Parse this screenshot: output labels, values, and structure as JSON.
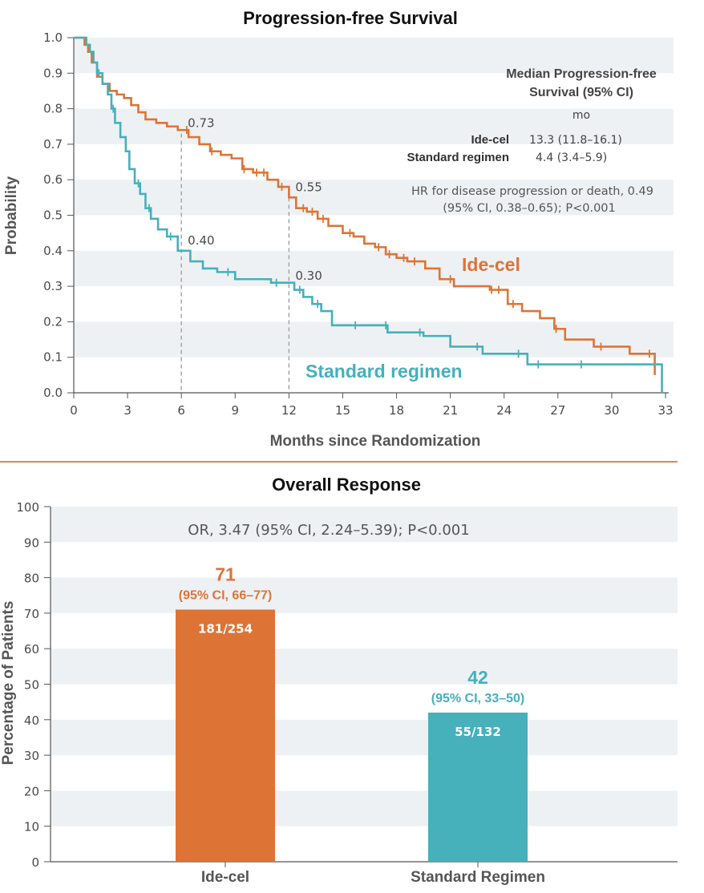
{
  "colors": {
    "ide_cel": "#dd7436",
    "standard": "#46b0bb",
    "band": "#eef1f4",
    "divider": "#e08a52"
  },
  "chart_data": [
    {
      "type": "line",
      "title": "Progression-free Survival",
      "xlabel": "Months since Randomization",
      "ylabel": "Probability",
      "xlim": [
        0,
        33
      ],
      "ylim": [
        0,
        1.0
      ],
      "x_ticks": [
        "0",
        "3",
        "6",
        "9",
        "12",
        "15",
        "18",
        "21",
        "24",
        "27",
        "30",
        "33"
      ],
      "y_ticks": [
        "0.0",
        "0.1",
        "0.2",
        "0.3",
        "0.4",
        "0.5",
        "0.6",
        "0.7",
        "0.8",
        "0.9",
        "1.0"
      ],
      "grid": "alternating horizontal bands",
      "legend_title": "Median Progression-free Survival (95% CI)",
      "legend_title_lines": [
        "Median Progression-free",
        "Survival (95% CI)"
      ],
      "legend_unit": "mo",
      "legend_rows": [
        {
          "name": "Ide-cel",
          "value": "13.3 (11.8–16.1)"
        },
        {
          "name": "Standard regimen",
          "value": "4.4 (3.4–5.9)"
        }
      ],
      "hr_text": [
        "HR for disease progression or death, 0.49",
        "(95% CI, 0.38–0.65); P<0.001"
      ],
      "annotations": [
        {
          "x": 6,
          "y": 0.73,
          "label": "0.73"
        },
        {
          "x": 12,
          "y": 0.55,
          "label": "0.55"
        },
        {
          "x": 6,
          "y": 0.4,
          "label": "0.40"
        },
        {
          "x": 12,
          "y": 0.3,
          "label": "0.30"
        }
      ],
      "series": [
        {
          "name": "Ide-cel",
          "x": [
            0,
            0.6,
            0.8,
            1.0,
            1.3,
            1.6,
            2.0,
            2.4,
            2.8,
            3.2,
            3.6,
            4.0,
            4.6,
            5.2,
            5.8,
            6.4,
            7.0,
            7.6,
            8.2,
            8.8,
            9.4,
            10.0,
            10.8,
            11.4,
            12.0,
            12.4,
            13.0,
            13.6,
            14.2,
            15.0,
            15.6,
            16.2,
            16.8,
            17.4,
            18.0,
            18.6,
            19.6,
            20.4,
            21.2,
            22.2,
            23.2,
            24.2,
            25.0,
            26.0,
            26.8,
            27.4,
            29.0,
            31.0,
            32.4
          ],
          "y": [
            1.0,
            0.98,
            0.96,
            0.93,
            0.89,
            0.87,
            0.85,
            0.84,
            0.83,
            0.81,
            0.79,
            0.77,
            0.76,
            0.75,
            0.74,
            0.72,
            0.7,
            0.68,
            0.67,
            0.66,
            0.63,
            0.62,
            0.6,
            0.58,
            0.55,
            0.52,
            0.51,
            0.49,
            0.47,
            0.45,
            0.44,
            0.42,
            0.41,
            0.39,
            0.38,
            0.37,
            0.35,
            0.32,
            0.3,
            0.3,
            0.29,
            0.25,
            0.23,
            0.21,
            0.18,
            0.15,
            0.13,
            0.11,
            0.05
          ],
          "end_x": 32.4,
          "censor_x": [
            6.3,
            7.7,
            9.5,
            10.2,
            10.6,
            11.6,
            12.8,
            13.3,
            13.9,
            15.4,
            17.0,
            17.6,
            18.4,
            19.0,
            21.0,
            23.3,
            23.7,
            24.5,
            26.9,
            29.4,
            32.1
          ]
        },
        {
          "name": "Standard regimen",
          "x": [
            0,
            0.7,
            0.9,
            1.1,
            1.3,
            1.6,
            1.9,
            2.1,
            2.3,
            2.6,
            2.9,
            3.1,
            3.4,
            3.7,
            4.0,
            4.3,
            4.7,
            5.2,
            5.8,
            6.5,
            7.2,
            8.0,
            9.0,
            11.0,
            12.3,
            12.8,
            13.3,
            13.8,
            14.4,
            16.0,
            17.5,
            19.5,
            21.0,
            22.8,
            25.3,
            27.5,
            32.8
          ],
          "y": [
            1.0,
            0.98,
            0.96,
            0.93,
            0.9,
            0.87,
            0.84,
            0.8,
            0.76,
            0.72,
            0.68,
            0.63,
            0.59,
            0.56,
            0.52,
            0.49,
            0.46,
            0.44,
            0.4,
            0.37,
            0.35,
            0.34,
            0.32,
            0.31,
            0.29,
            0.27,
            0.25,
            0.23,
            0.19,
            0.19,
            0.17,
            0.16,
            0.13,
            0.11,
            0.08,
            0.08,
            0.08
          ],
          "end_x": 32.8,
          "end_drop": true,
          "censor_x": [
            1.4,
            2.2,
            3.6,
            4.2,
            5.4,
            8.6,
            11.3,
            12.6,
            13.6,
            15.7,
            17.4,
            19.3,
            22.5,
            24.8,
            25.9,
            28.3
          ]
        }
      ]
    },
    {
      "type": "bar",
      "title": "Overall Response",
      "xlabel": "",
      "ylabel": "Percentage of Patients",
      "ylim": [
        0,
        100
      ],
      "y_ticks": [
        "0",
        "10",
        "20",
        "30",
        "40",
        "50",
        "60",
        "70",
        "80",
        "90",
        "100"
      ],
      "categories": [
        "Ide-cel",
        "Standard Regimen"
      ],
      "values": [
        71,
        42
      ],
      "value_labels": [
        "71",
        "42"
      ],
      "ci_labels": [
        "(95% CI, 66–77)",
        "(95% CI, 33–50)"
      ],
      "count_labels": [
        "181/254",
        "55/132"
      ],
      "or_text": "OR, 3.47 (95% CI, 2.24–5.39); P<0.001",
      "grid": "alternating horizontal bands"
    }
  ]
}
